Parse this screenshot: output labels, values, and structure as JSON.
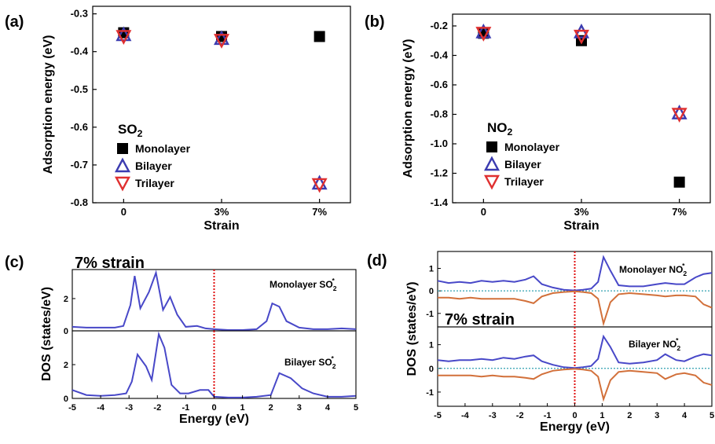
{
  "colors": {
    "monolayer": "#000000",
    "bilayer": "#3b3bb0",
    "trilayer": "#e03030",
    "dos_up": "#4848c8",
    "dos_down": "#d2703a",
    "fermi": "#e01010",
    "zero_line": "#30a0b0"
  },
  "chart_data": [
    {
      "panel": "(a)",
      "type": "scatter",
      "xlabel": "Strain",
      "ylabel": "Adsorption energy (eV)",
      "categories": [
        "0",
        "3%",
        "7%"
      ],
      "ylim": [
        -0.8,
        -0.28
      ],
      "yticks": [
        "-0.3",
        "-0.4",
        "-0.5",
        "-0.6",
        "-0.7",
        "-0.8"
      ],
      "legend_title": "SO",
      "legend_title_sub": "2",
      "series": [
        {
          "name": "Monolayer",
          "marker": "square",
          "values": [
            -0.35,
            -0.36,
            -0.36
          ]
        },
        {
          "name": "Bilayer",
          "marker": "triangle-up",
          "values": [
            -0.355,
            -0.365,
            -0.748
          ]
        },
        {
          "name": "Trilayer",
          "marker": "triangle-down",
          "values": [
            -0.36,
            -0.37,
            -0.752
          ]
        }
      ]
    },
    {
      "panel": "(b)",
      "type": "scatter",
      "xlabel": "Strain",
      "ylabel": "Adsorption energy (eV)",
      "categories": [
        "0",
        "3%",
        "7%"
      ],
      "ylim": [
        -1.4,
        -0.12
      ],
      "yticks": [
        "-0.2",
        "-0.4",
        "-0.6",
        "-0.8",
        "-1.0",
        "-1.2",
        "-1.4"
      ],
      "legend_title": "NO",
      "legend_title_sub": "2",
      "series": [
        {
          "name": "Monolayer",
          "marker": "square",
          "values": [
            -0.25,
            -0.3,
            -1.26
          ]
        },
        {
          "name": "Bilayer",
          "marker": "triangle-up",
          "values": [
            -0.24,
            -0.24,
            -0.79
          ]
        },
        {
          "name": "Trilayer",
          "marker": "triangle-down",
          "values": [
            -0.25,
            -0.27,
            -0.8
          ]
        }
      ]
    },
    {
      "panel": "(c)",
      "type": "line",
      "annotation": "7% strain",
      "xlabel": "Energy (eV)",
      "ylabel": "DOS (states/eV)",
      "xlim": [
        -5,
        5
      ],
      "xticks": [
        "-5",
        "-4",
        "-3",
        "-2",
        "-1",
        "0",
        "1",
        "2",
        "3",
        "4",
        "5"
      ],
      "fermi_level": 0,
      "subplots": [
        {
          "label": "Monolayer SO",
          "label_sub": "2",
          "label_sup": "*",
          "ylim": [
            0,
            3.8
          ],
          "yticks": [
            "0",
            "2"
          ],
          "x": [
            -5,
            -4.5,
            -4,
            -3.5,
            -3.2,
            -2.95,
            -2.8,
            -2.6,
            -2.3,
            -2.05,
            -1.8,
            -1.55,
            -1.3,
            -1,
            -0.6,
            -0.3,
            0,
            0.5,
            1,
            1.5,
            1.85,
            2.05,
            2.3,
            2.55,
            3,
            3.5,
            4,
            4.5,
            5
          ],
          "y": [
            0.25,
            0.2,
            0.2,
            0.2,
            0.3,
            1.6,
            3.4,
            1.4,
            2.4,
            3.6,
            1.3,
            2.1,
            1.0,
            0.25,
            0.3,
            0.15,
            0.1,
            0.05,
            0.05,
            0.1,
            0.6,
            1.7,
            1.5,
            0.6,
            0.2,
            0.1,
            0.1,
            0.15,
            0.1
          ]
        },
        {
          "label": "Bilayer SO",
          "label_sub": "2",
          "label_sup": "*",
          "ylim": [
            0,
            4.0
          ],
          "yticks": [
            "0",
            "2"
          ],
          "x": [
            -5,
            -4.5,
            -4,
            -3.5,
            -3.1,
            -2.9,
            -2.7,
            -2.4,
            -2.2,
            -1.95,
            -1.75,
            -1.5,
            -1.2,
            -0.9,
            -0.5,
            -0.2,
            0,
            0.5,
            1,
            1.5,
            2,
            2.3,
            2.7,
            3.1,
            3.5,
            4,
            4.5,
            5
          ],
          "y": [
            0.5,
            0.2,
            0.15,
            0.2,
            0.3,
            1.0,
            2.6,
            1.9,
            1.1,
            3.8,
            3.0,
            0.8,
            0.3,
            0.3,
            0.5,
            0.5,
            0.1,
            0.05,
            0.05,
            0.1,
            0.2,
            1.5,
            1.2,
            0.6,
            0.3,
            0.1,
            0.1,
            0.15
          ]
        }
      ]
    },
    {
      "panel": "(d)",
      "type": "line",
      "annotation": "7% strain",
      "xlabel": "Energy (eV)",
      "ylabel": "DOS (states/eV)",
      "xlim": [
        -5,
        5
      ],
      "xticks": [
        "-5",
        "-4",
        "-3",
        "-2",
        "-1",
        "0",
        "1",
        "2",
        "3",
        "4",
        "5"
      ],
      "fermi_level": 0,
      "subplots": [
        {
          "label": "Monolayer NO",
          "label_sub": "2",
          "label_sup": "*",
          "ylim": [
            -1.6,
            1.75
          ],
          "yticks": [
            "1",
            "0",
            "-1"
          ],
          "x": [
            -5,
            -4.6,
            -4.2,
            -3.8,
            -3.4,
            -3,
            -2.6,
            -2.2,
            -1.8,
            -1.5,
            -1.2,
            -0.8,
            -0.4,
            0,
            0.3,
            0.6,
            0.85,
            1.05,
            1.3,
            1.6,
            2,
            2.5,
            3,
            3.3,
            3.7,
            4,
            4.4,
            4.7,
            5
          ],
          "up": [
            0.45,
            0.35,
            0.4,
            0.35,
            0.45,
            0.4,
            0.45,
            0.4,
            0.5,
            0.65,
            0.3,
            0.15,
            0.05,
            0.02,
            0.05,
            0.1,
            0.4,
            1.5,
            0.9,
            0.25,
            0.2,
            0.2,
            0.3,
            0.35,
            0.3,
            0.3,
            0.6,
            0.75,
            0.8
          ],
          "down": [
            -0.3,
            -0.3,
            -0.35,
            -0.3,
            -0.35,
            -0.35,
            -0.35,
            -0.35,
            -0.45,
            -0.55,
            -0.25,
            -0.1,
            -0.05,
            -0.02,
            -0.05,
            -0.1,
            -0.35,
            -1.45,
            -0.5,
            -0.15,
            -0.1,
            -0.15,
            -0.2,
            -0.25,
            -0.2,
            -0.2,
            -0.25,
            -0.6,
            -0.75
          ]
        },
        {
          "label": "Bilayer NO",
          "label_sub": "2",
          "label_sup": "*",
          "ylim": [
            -1.6,
            1.75
          ],
          "yticks": [
            "1",
            "0",
            "-1"
          ],
          "x": [
            -5,
            -4.6,
            -4.2,
            -3.8,
            -3.4,
            -3,
            -2.6,
            -2.2,
            -1.8,
            -1.5,
            -1.2,
            -0.8,
            -0.4,
            0,
            0.3,
            0.6,
            0.85,
            1.05,
            1.3,
            1.6,
            2,
            2.5,
            3,
            3.3,
            3.7,
            4,
            4.4,
            4.7,
            5
          ],
          "up": [
            0.35,
            0.3,
            0.35,
            0.35,
            0.4,
            0.35,
            0.45,
            0.4,
            0.5,
            0.55,
            0.3,
            0.15,
            0.05,
            0.02,
            0.05,
            0.1,
            0.4,
            1.35,
            0.9,
            0.25,
            0.2,
            0.25,
            0.35,
            0.6,
            0.35,
            0.3,
            0.5,
            0.6,
            0.55
          ],
          "down": [
            -0.3,
            -0.3,
            -0.3,
            -0.3,
            -0.35,
            -0.3,
            -0.35,
            -0.35,
            -0.4,
            -0.45,
            -0.25,
            -0.1,
            -0.05,
            -0.02,
            -0.05,
            -0.1,
            -0.35,
            -1.3,
            -0.5,
            -0.15,
            -0.1,
            -0.15,
            -0.2,
            -0.45,
            -0.25,
            -0.2,
            -0.3,
            -0.6,
            -0.7
          ]
        }
      ]
    }
  ]
}
